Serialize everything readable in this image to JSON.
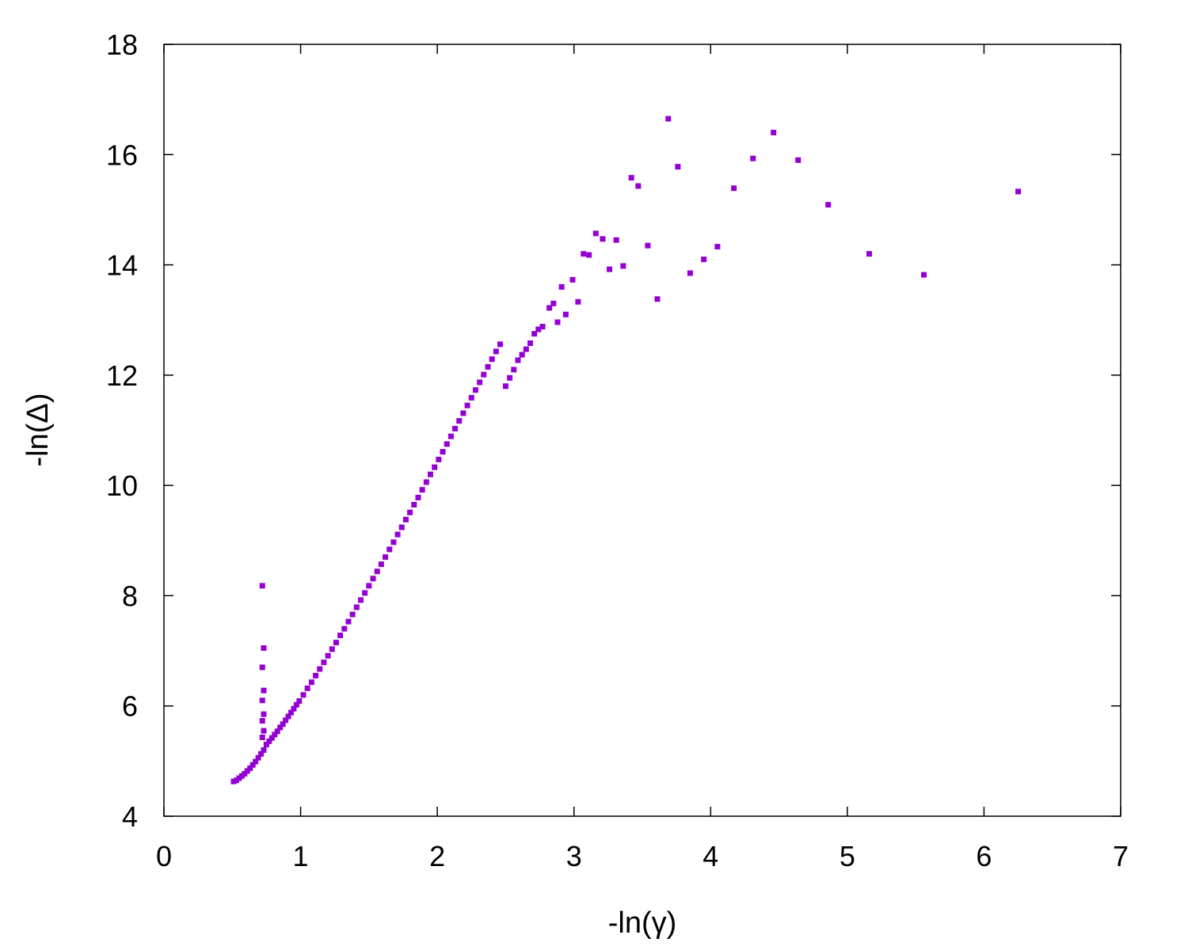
{
  "chart_data": {
    "type": "scatter",
    "title": "",
    "xlabel": "-ln(γ)",
    "ylabel": "-ln(Δ)",
    "xlim": [
      0,
      7
    ],
    "ylim": [
      4,
      18
    ],
    "xticks": [
      "0",
      "1",
      "2",
      "3",
      "4",
      "5",
      "6",
      "7"
    ],
    "yticks": [
      "4",
      "6",
      "8",
      "10",
      "12",
      "14",
      "16",
      "18"
    ],
    "grid": false,
    "legend": "none",
    "marker_color": "#9400d3",
    "series": [
      {
        "points": [
          [
            0.51,
            4.63
          ],
          [
            0.53,
            4.65
          ],
          [
            0.55,
            4.69
          ],
          [
            0.57,
            4.73
          ],
          [
            0.59,
            4.77
          ],
          [
            0.61,
            4.82
          ],
          [
            0.63,
            4.87
          ],
          [
            0.65,
            4.93
          ],
          [
            0.67,
            4.99
          ],
          [
            0.69,
            5.06
          ],
          [
            0.71,
            5.13
          ],
          [
            0.73,
            5.2
          ],
          [
            0.75,
            5.3
          ],
          [
            0.77,
            5.36
          ],
          [
            0.79,
            5.42
          ],
          [
            0.81,
            5.48
          ],
          [
            0.83,
            5.54
          ],
          [
            0.85,
            5.61
          ],
          [
            0.87,
            5.67
          ],
          [
            0.89,
            5.74
          ],
          [
            0.91,
            5.81
          ],
          [
            0.93,
            5.88
          ],
          [
            0.95,
            5.95
          ],
          [
            0.97,
            6.02
          ],
          [
            0.99,
            6.09
          ],
          [
            1.02,
            6.2
          ],
          [
            1.05,
            6.32
          ],
          [
            1.08,
            6.43
          ],
          [
            1.11,
            6.55
          ],
          [
            1.14,
            6.67
          ],
          [
            1.17,
            6.79
          ],
          [
            1.2,
            6.91
          ],
          [
            1.23,
            7.03
          ],
          [
            1.26,
            7.15
          ],
          [
            1.29,
            7.28
          ],
          [
            1.32,
            7.4
          ],
          [
            1.35,
            7.53
          ],
          [
            1.38,
            7.66
          ],
          [
            1.41,
            7.79
          ],
          [
            1.44,
            7.92
          ],
          [
            1.47,
            8.05
          ],
          [
            1.5,
            8.18
          ],
          [
            1.53,
            8.31
          ],
          [
            1.56,
            8.44
          ],
          [
            1.59,
            8.57
          ],
          [
            1.62,
            8.7
          ],
          [
            1.65,
            8.84
          ],
          [
            1.68,
            8.97
          ],
          [
            1.71,
            9.11
          ],
          [
            1.74,
            9.24
          ],
          [
            1.77,
            9.38
          ],
          [
            1.8,
            9.51
          ],
          [
            1.83,
            9.65
          ],
          [
            1.86,
            9.78
          ],
          [
            1.89,
            9.92
          ],
          [
            1.92,
            10.06
          ],
          [
            1.95,
            10.2
          ],
          [
            1.98,
            10.33
          ],
          [
            2.01,
            10.47
          ],
          [
            2.04,
            10.61
          ],
          [
            2.07,
            10.75
          ],
          [
            2.1,
            10.89
          ],
          [
            2.13,
            11.03
          ],
          [
            2.16,
            11.17
          ],
          [
            2.19,
            11.31
          ],
          [
            2.22,
            11.45
          ],
          [
            2.25,
            11.59
          ],
          [
            2.28,
            11.73
          ],
          [
            2.31,
            11.87
          ],
          [
            2.34,
            12.01
          ],
          [
            2.37,
            12.15
          ],
          [
            2.4,
            12.29
          ],
          [
            2.43,
            12.43
          ],
          [
            2.46,
            12.56
          ],
          [
            2.5,
            11.8
          ],
          [
            2.53,
            11.95
          ],
          [
            2.56,
            12.1
          ],
          [
            2.59,
            12.27
          ],
          [
            2.62,
            12.37
          ],
          [
            2.65,
            12.47
          ],
          [
            2.68,
            12.58
          ],
          [
            2.71,
            12.75
          ],
          [
            2.74,
            12.83
          ],
          [
            2.77,
            12.88
          ],
          [
            2.82,
            13.22
          ],
          [
            2.85,
            13.3
          ],
          [
            2.88,
            12.96
          ],
          [
            2.91,
            13.6
          ],
          [
            2.94,
            13.1
          ],
          [
            2.99,
            13.73
          ],
          [
            3.03,
            13.33
          ],
          [
            3.07,
            14.2
          ],
          [
            3.11,
            14.18
          ],
          [
            3.16,
            14.57
          ],
          [
            3.21,
            14.47
          ],
          [
            3.26,
            13.92
          ],
          [
            3.31,
            14.45
          ],
          [
            3.36,
            13.98
          ],
          [
            3.42,
            15.58
          ],
          [
            3.47,
            15.43
          ],
          [
            3.54,
            14.35
          ],
          [
            3.61,
            13.38
          ],
          [
            3.69,
            16.65
          ],
          [
            3.76,
            15.78
          ],
          [
            3.85,
            13.85
          ],
          [
            3.95,
            14.1
          ],
          [
            4.05,
            14.33
          ],
          [
            4.17,
            15.39
          ],
          [
            4.31,
            15.93
          ],
          [
            4.46,
            16.4
          ],
          [
            4.64,
            15.9
          ],
          [
            4.86,
            15.09
          ],
          [
            5.16,
            14.2
          ],
          [
            5.56,
            13.82
          ],
          [
            6.25,
            15.33
          ],
          [
            0.72,
            8.18
          ],
          [
            0.73,
            7.05
          ],
          [
            0.72,
            6.7
          ],
          [
            0.73,
            6.28
          ],
          [
            0.72,
            6.1
          ],
          [
            0.73,
            5.85
          ],
          [
            0.72,
            5.73
          ],
          [
            0.73,
            5.55
          ],
          [
            0.72,
            5.43
          ]
        ]
      }
    ]
  }
}
